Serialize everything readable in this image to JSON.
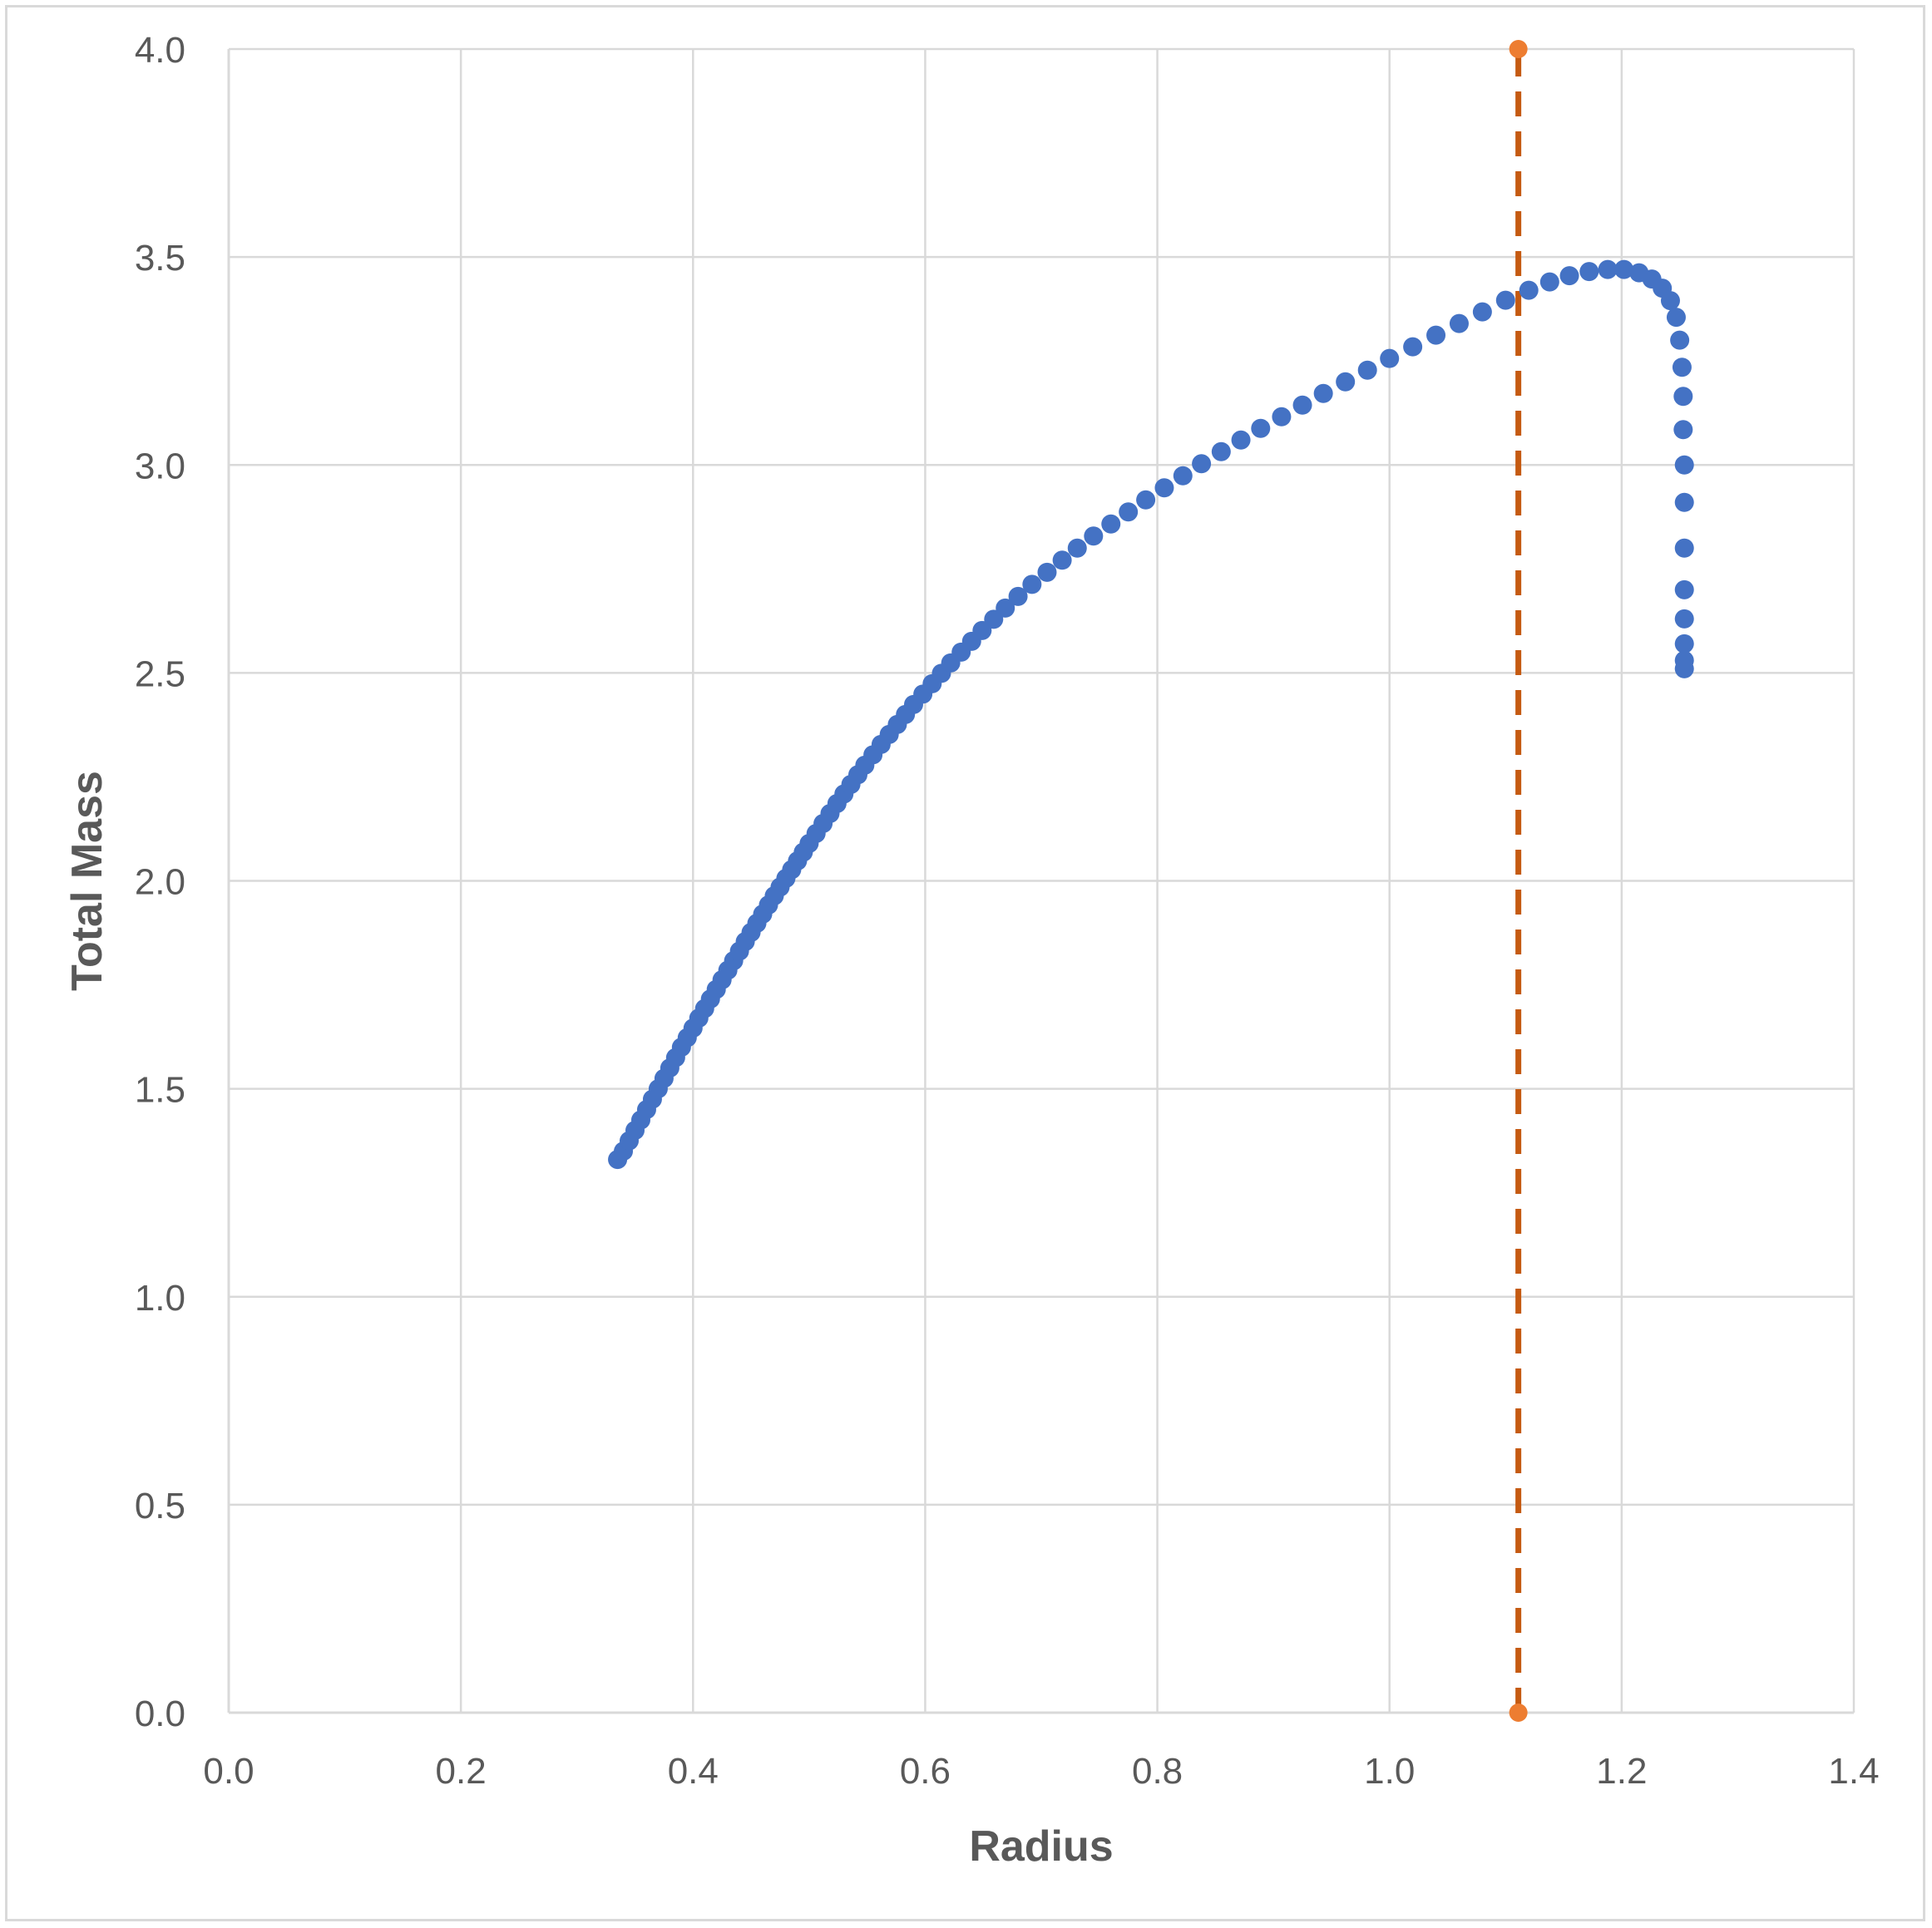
{
  "chart_data": {
    "type": "scatter",
    "title": "",
    "xlabel": "Radius",
    "ylabel": "Total Mass",
    "xlim": [
      0,
      1.4
    ],
    "ylim": [
      0,
      4
    ],
    "x_ticks": [
      "0.0",
      "0.2",
      "0.4",
      "0.6",
      "0.8",
      "1.0",
      "1.2",
      "1.4"
    ],
    "y_ticks": [
      "0.0",
      "0.5",
      "1.0",
      "1.5",
      "2.0",
      "2.5",
      "3.0",
      "3.5",
      "4.0"
    ],
    "grid": true,
    "legend": "none",
    "colors": {
      "series": "#4472c4",
      "reference": "#ed7d31",
      "reference_line": "#c55a11",
      "grid": "#d9d9d9",
      "text": "#595959"
    },
    "series": [
      {
        "style": "markers",
        "x": [
          0.335,
          0.34,
          0.345,
          0.35,
          0.355,
          0.36,
          0.365,
          0.37,
          0.375,
          0.38,
          0.385,
          0.39,
          0.395,
          0.4,
          0.405,
          0.41,
          0.415,
          0.42,
          0.425,
          0.43,
          0.435,
          0.44,
          0.445,
          0.45,
          0.455,
          0.46,
          0.465,
          0.47,
          0.475,
          0.48,
          0.485,
          0.49,
          0.495,
          0.5,
          0.506,
          0.512,
          0.518,
          0.524,
          0.53,
          0.536,
          0.542,
          0.548,
          0.555,
          0.562,
          0.569,
          0.576,
          0.583,
          0.59,
          0.598,
          0.606,
          0.614,
          0.622,
          0.631,
          0.64,
          0.649,
          0.659,
          0.669,
          0.68,
          0.692,
          0.705,
          0.718,
          0.731,
          0.745,
          0.76,
          0.775,
          0.79,
          0.806,
          0.822,
          0.838,
          0.855,
          0.872,
          0.889,
          0.907,
          0.925,
          0.943,
          0.962,
          0.981,
          1.0,
          1.02,
          1.04,
          1.06,
          1.08,
          1.1,
          1.12,
          1.138,
          1.155,
          1.172,
          1.188,
          1.202,
          1.215,
          1.226,
          1.235,
          1.242,
          1.247,
          1.25,
          1.252,
          1.253,
          1.253,
          1.254,
          1.254,
          1.254
        ],
        "y": [
          1.33,
          1.35,
          1.375,
          1.4,
          1.425,
          1.45,
          1.475,
          1.5,
          1.525,
          1.55,
          1.575,
          1.6,
          1.623,
          1.646,
          1.67,
          1.693,
          1.716,
          1.739,
          1.762,
          1.785,
          1.808,
          1.831,
          1.854,
          1.876,
          1.898,
          1.92,
          1.942,
          1.964,
          1.985,
          2.006,
          2.027,
          2.048,
          2.069,
          2.09,
          2.114,
          2.138,
          2.162,
          2.186,
          2.209,
          2.232,
          2.255,
          2.278,
          2.303,
          2.328,
          2.352,
          2.376,
          2.4,
          2.424,
          2.449,
          2.474,
          2.499,
          2.524,
          2.55,
          2.576,
          2.602,
          2.629,
          2.656,
          2.684,
          2.713,
          2.742,
          2.771,
          2.8,
          2.829,
          2.858,
          2.887,
          2.916,
          2.945,
          2.974,
          3.003,
          3.032,
          3.06,
          3.088,
          3.116,
          3.144,
          3.172,
          3.2,
          3.228,
          3.256,
          3.284,
          3.312,
          3.34,
          3.368,
          3.396,
          3.42,
          3.44,
          3.455,
          3.465,
          3.47,
          3.47,
          3.462,
          3.447,
          3.425,
          3.395,
          3.355,
          3.3,
          3.235,
          3.165,
          3.085,
          3.0,
          2.91,
          2.8
        ],
        "note_points_tail": true
      },
      {
        "style": "dashed-line-with-end-markers",
        "x": [
          1.111,
          1.111
        ],
        "y": [
          0.0,
          4.0
        ]
      }
    ]
  }
}
